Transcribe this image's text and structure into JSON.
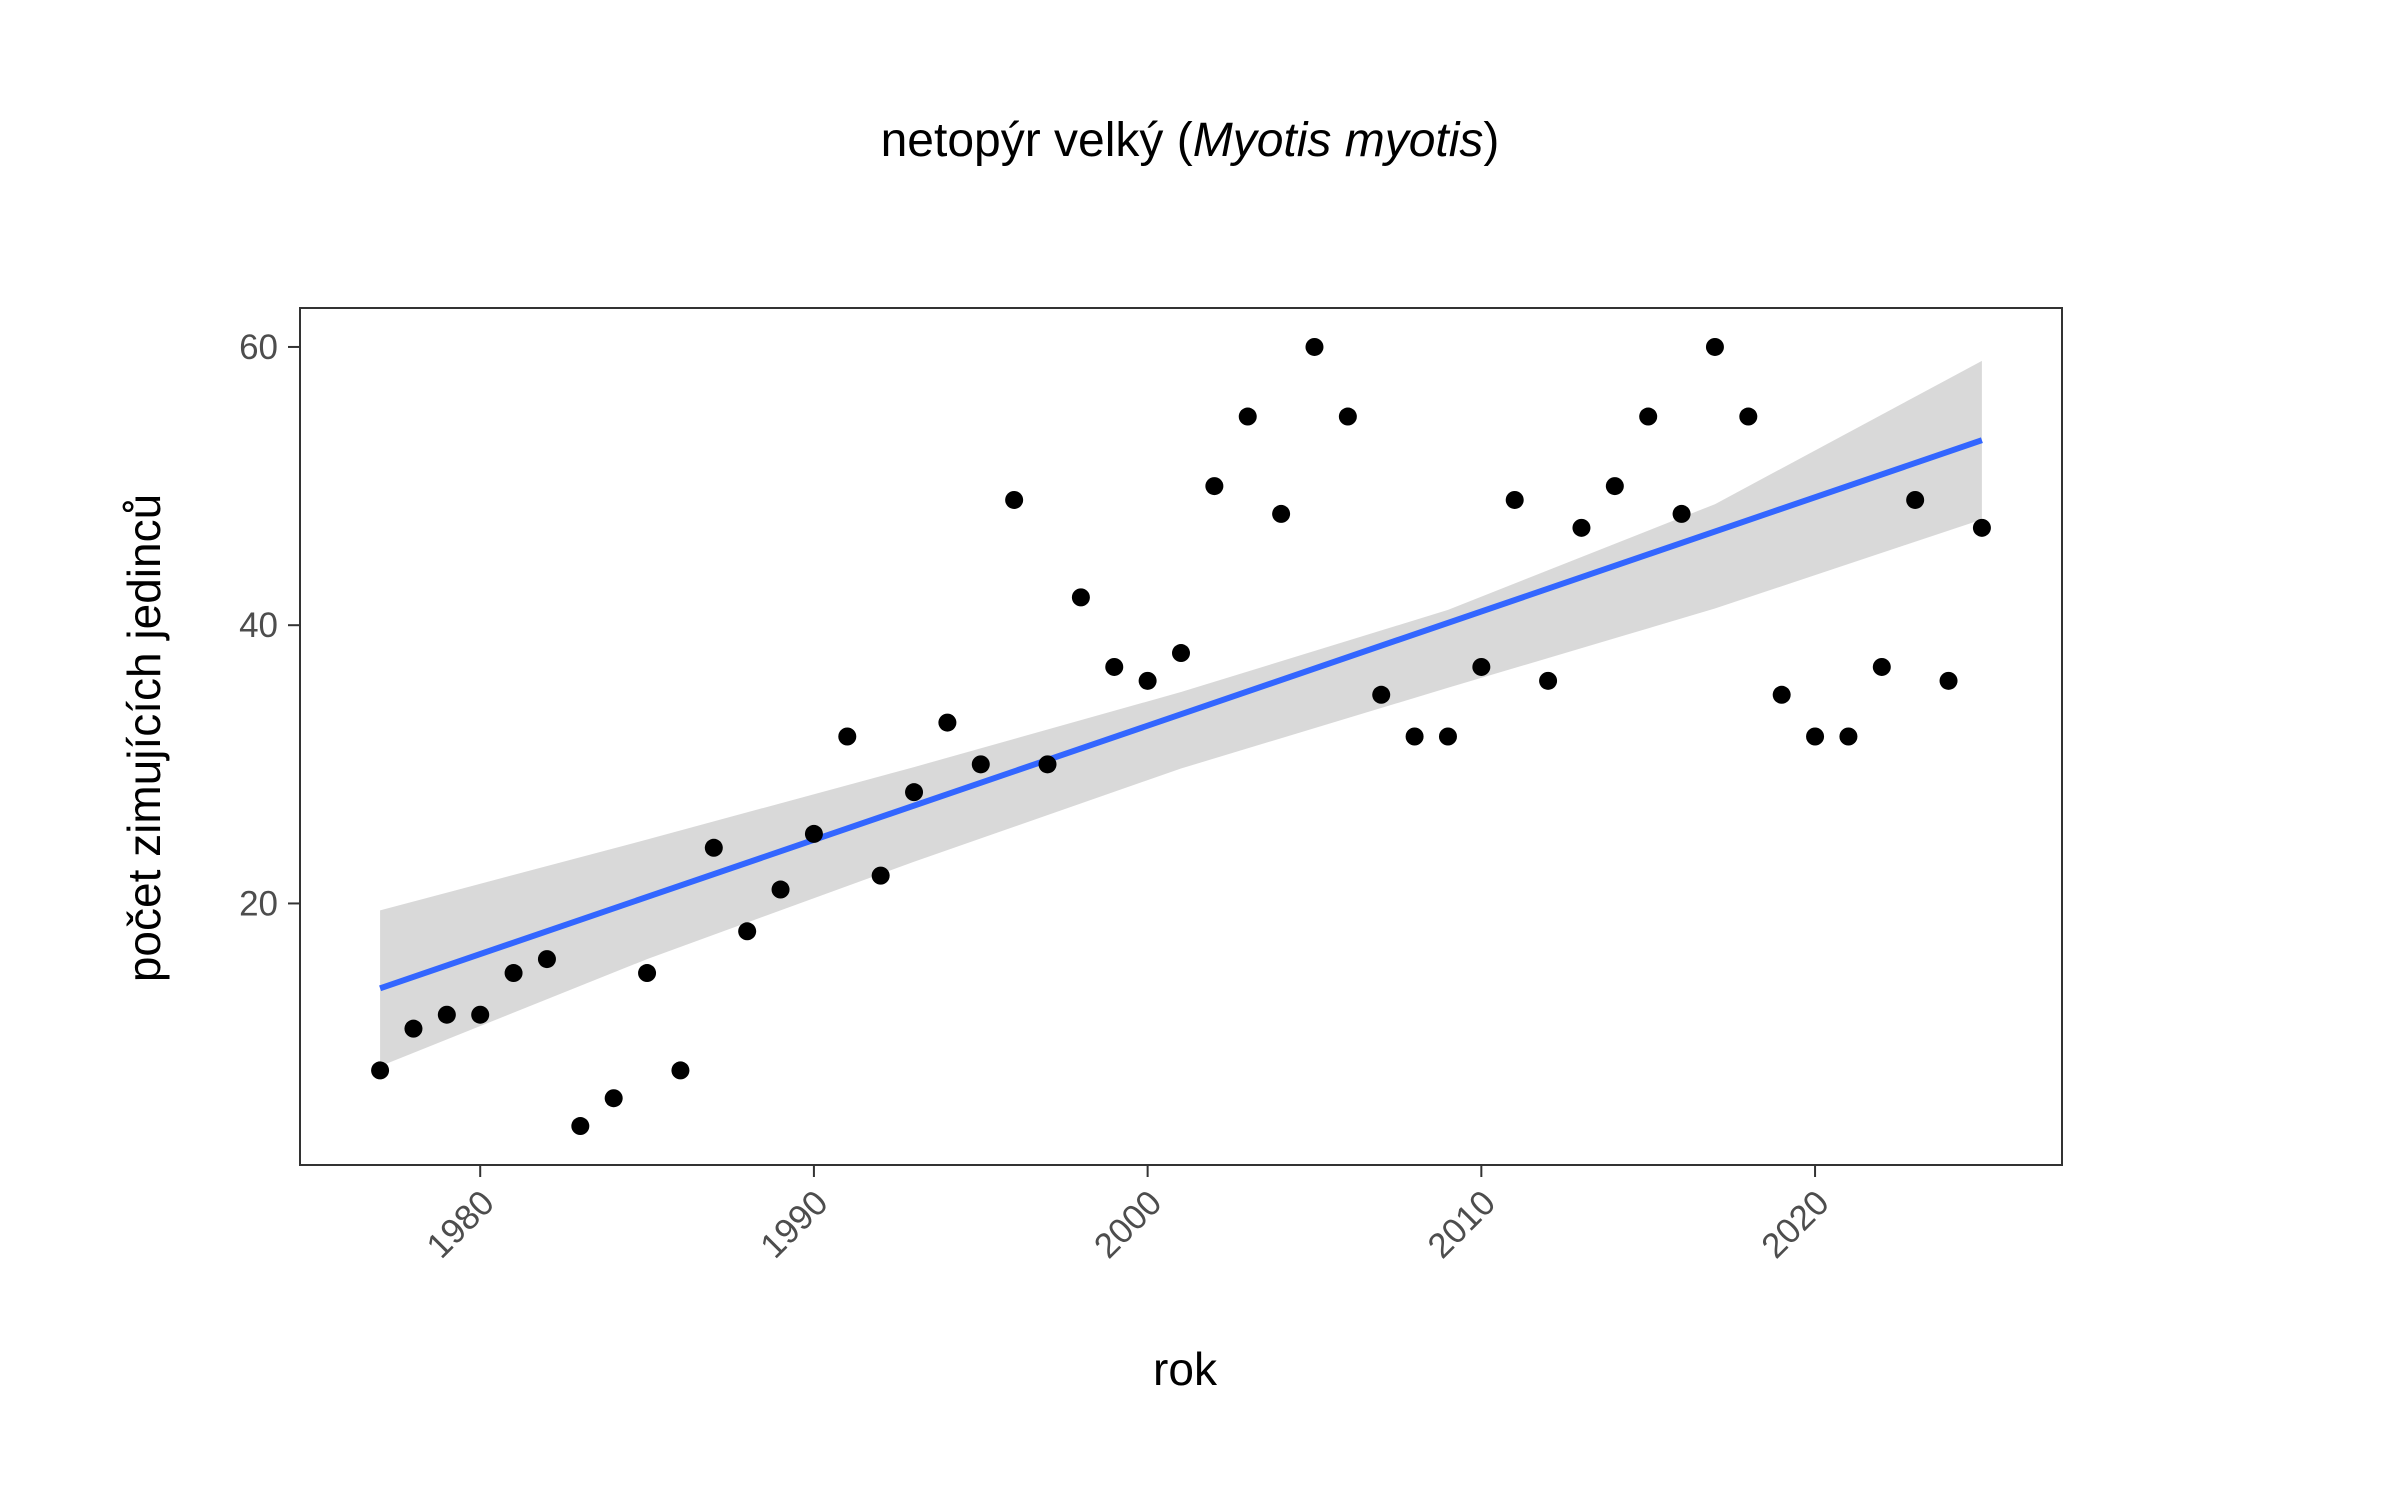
{
  "chart_data": {
    "type": "scatter",
    "title": {
      "prefix": "netopýr velký (",
      "italic": "Myotis myotis",
      "suffix": ")"
    },
    "xlabel": "rok",
    "ylabel": "počet zimujících jedinců",
    "xlim": [
      1974.6,
      2027.4
    ],
    "ylim": [
      1.2,
      62.8
    ],
    "x_ticks": [
      1980,
      1990,
      2000,
      2010,
      2020
    ],
    "y_ticks": [
      20,
      40,
      60
    ],
    "grid": false,
    "legend": "none",
    "points": {
      "x": [
        1977,
        1978,
        1979,
        1980,
        1981,
        1982,
        1983,
        1984,
        1985,
        1986,
        1987,
        1988,
        1989,
        1990,
        1991,
        1992,
        1993,
        1994,
        1995,
        1996,
        1997,
        1998,
        1999,
        2000,
        2001,
        2002,
        2003,
        2004,
        2005,
        2006,
        2007,
        2008,
        2009,
        2010,
        2011,
        2012,
        2013,
        2014,
        2015,
        2016,
        2017,
        2018,
        2019,
        2020,
        2021,
        2022,
        2023,
        2024,
        2025
      ],
      "y": [
        8,
        11,
        12,
        12,
        15,
        16,
        4,
        6,
        15,
        8,
        24,
        18,
        21,
        25,
        32,
        22,
        28,
        33,
        30,
        49,
        30,
        42,
        37,
        36,
        38,
        50,
        55,
        48,
        60,
        55,
        35,
        32,
        32,
        37,
        49,
        36,
        47,
        50,
        55,
        48,
        60,
        55,
        35,
        32,
        32,
        37,
        49,
        36,
        47
      ]
    },
    "trend": {
      "method": "linear",
      "x": [
        1977,
        2025
      ],
      "y": [
        13.9,
        53.3
      ],
      "ci_x": [
        1977,
        1985,
        1993,
        2001,
        2009,
        2017,
        2025
      ],
      "ci_lower": [
        8.3,
        16.0,
        23.0,
        29.7,
        35.5,
        41.2,
        47.6
      ],
      "ci_upper": [
        19.5,
        24.6,
        29.8,
        35.2,
        41.1,
        48.7,
        59.0
      ]
    },
    "colors": {
      "points": "#000000",
      "trend_line": "#3366ff",
      "confidence_band": "#bfbfbf",
      "axis": "#333333",
      "tick_label": "#4d4d4d"
    }
  }
}
